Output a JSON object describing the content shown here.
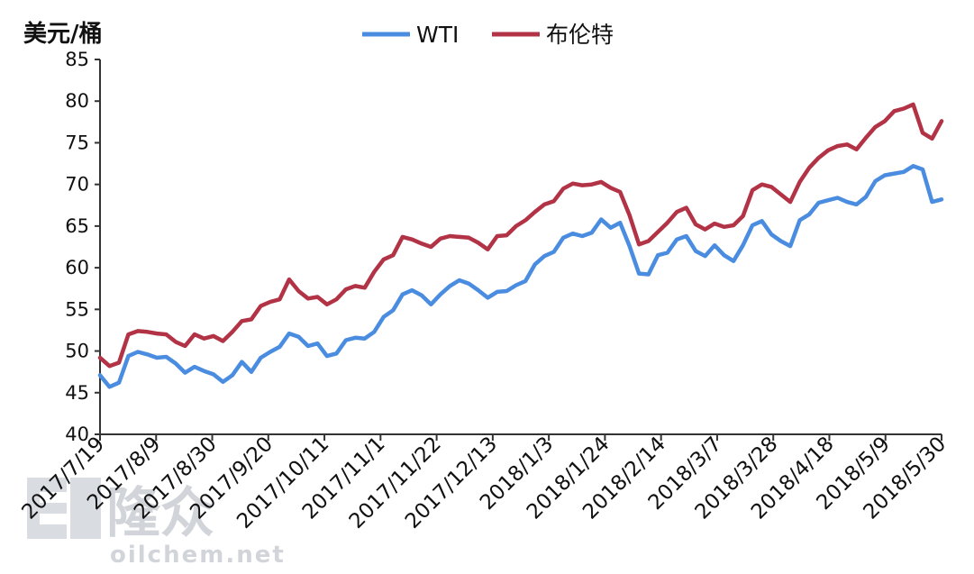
{
  "chart_data": {
    "type": "line",
    "title": "",
    "ylabel": "美元/桶",
    "xlabel": "",
    "ylim": [
      40,
      85
    ],
    "yticks": [
      40,
      45,
      50,
      55,
      60,
      65,
      70,
      75,
      80,
      85
    ],
    "x_tick_labels": [
      "2017/7/19",
      "2017/8/9",
      "2017/8/30",
      "2017/9/20",
      "2017/10/11",
      "2017/11/1",
      "2017/11/22",
      "2017/12/13",
      "2018/1/3",
      "2018/1/24",
      "2018/2/14",
      "2018/3/7",
      "2018/3/28",
      "2018/4/18",
      "2018/5/9",
      "2018/5/30"
    ],
    "grid": false,
    "legend_position": "top-center",
    "series": [
      {
        "name": "WTI",
        "color": "#4a8de0",
        "values": [
          47.1,
          45.7,
          46.2,
          49.4,
          49.9,
          49.6,
          49.2,
          49.3,
          48.5,
          47.4,
          48.1,
          47.6,
          47.2,
          46.3,
          47.1,
          48.7,
          47.5,
          49.2,
          49.9,
          50.5,
          52.1,
          51.7,
          50.6,
          50.9,
          49.4,
          49.7,
          51.3,
          51.6,
          51.5,
          52.3,
          54.1,
          54.9,
          56.8,
          57.3,
          56.7,
          55.6,
          56.8,
          57.8,
          58.5,
          58.1,
          57.3,
          56.4,
          57.1,
          57.2,
          57.9,
          58.4,
          60.4,
          61.4,
          61.9,
          63.6,
          64.1,
          63.8,
          64.2,
          65.8,
          64.8,
          65.4,
          62.6,
          59.3,
          59.2,
          61.5,
          61.8,
          63.4,
          63.8,
          62.0,
          61.4,
          62.7,
          61.5,
          60.8,
          62.7,
          65.1,
          65.6,
          64.0,
          63.2,
          62.6,
          65.7,
          66.4,
          67.8,
          68.1,
          68.4,
          67.9,
          67.6,
          68.5,
          70.4,
          71.1,
          71.3,
          71.5,
          72.2,
          71.8,
          67.9,
          68.2
        ]
      },
      {
        "name": "布伦特",
        "color": "#b23345",
        "values": [
          49.2,
          48.2,
          48.6,
          52.0,
          52.4,
          52.3,
          52.1,
          52.0,
          51.1,
          50.6,
          52.0,
          51.5,
          51.8,
          51.2,
          52.3,
          53.6,
          53.8,
          55.4,
          55.9,
          56.2,
          58.6,
          57.2,
          56.3,
          56.5,
          55.6,
          56.2,
          57.4,
          57.8,
          57.6,
          59.5,
          61.0,
          61.5,
          63.7,
          63.4,
          62.9,
          62.5,
          63.5,
          63.8,
          63.7,
          63.6,
          63.0,
          62.2,
          63.8,
          63.9,
          65.0,
          65.7,
          66.7,
          67.6,
          68.0,
          69.5,
          70.1,
          69.9,
          70.0,
          70.3,
          69.6,
          69.1,
          66.3,
          62.8,
          63.2,
          64.3,
          65.4,
          66.7,
          67.2,
          65.2,
          64.6,
          65.3,
          64.9,
          65.1,
          66.2,
          69.3,
          70.0,
          69.7,
          68.8,
          67.9,
          70.3,
          72.0,
          73.2,
          74.1,
          74.6,
          74.8,
          74.2,
          75.6,
          76.9,
          77.6,
          78.8,
          79.1,
          79.6,
          76.2,
          75.5,
          77.6
        ]
      }
    ]
  },
  "watermark": {
    "logo_text": "隆众",
    "site_text": "oilchem.net"
  }
}
